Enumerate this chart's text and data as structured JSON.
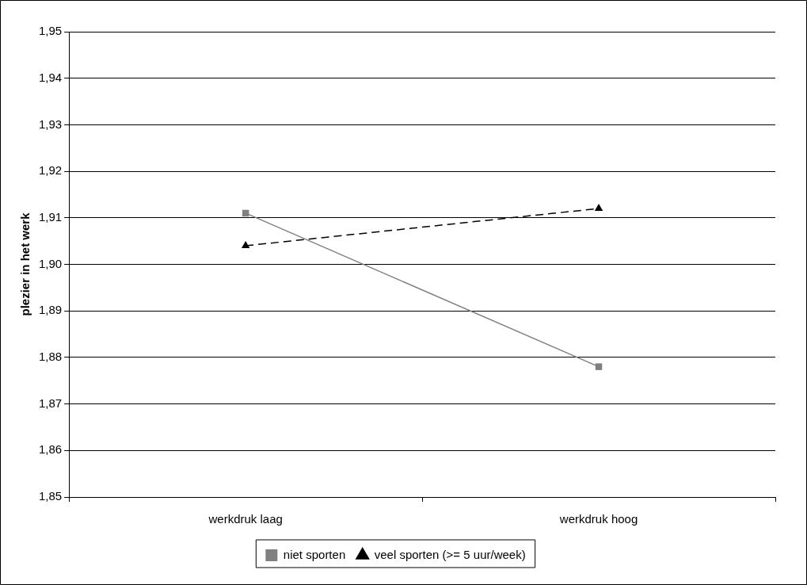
{
  "chart_data": {
    "type": "line",
    "ylabel": "plezier in het werk",
    "categories": [
      "werkdruk laag",
      "werkdruk hoog"
    ],
    "series": [
      {
        "name": "niet sporten",
        "color": "#808080",
        "values": [
          1.911,
          1.878
        ],
        "marker": "square",
        "line_style": "solid"
      },
      {
        "name": "veel sporten (>= 5 uur/week)",
        "color": "#000000",
        "values": [
          1.904,
          1.912
        ],
        "marker": "triangle",
        "line_style": "dashed"
      }
    ],
    "ylim": [
      1.85,
      1.95
    ],
    "yticks": [
      {
        "value": 1.85,
        "label": "1,85"
      },
      {
        "value": 1.86,
        "label": "1,86"
      },
      {
        "value": 1.87,
        "label": "1,87"
      },
      {
        "value": 1.88,
        "label": "1,88"
      },
      {
        "value": 1.89,
        "label": "1,89"
      },
      {
        "value": 1.9,
        "label": "1,90"
      },
      {
        "value": 1.91,
        "label": "1,91"
      },
      {
        "value": 1.92,
        "label": "1,92"
      },
      {
        "value": 1.93,
        "label": "1,93"
      },
      {
        "value": 1.94,
        "label": "1,94"
      },
      {
        "value": 1.95,
        "label": "1,95"
      }
    ],
    "grid": "y",
    "legend": "bottom"
  }
}
